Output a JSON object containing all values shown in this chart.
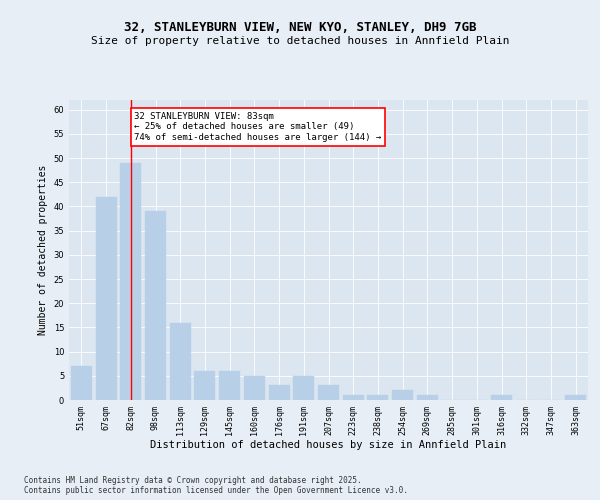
{
  "title": "32, STANLEYBURN VIEW, NEW KYO, STANLEY, DH9 7GB",
  "subtitle": "Size of property relative to detached houses in Annfield Plain",
  "xlabel": "Distribution of detached houses by size in Annfield Plain",
  "ylabel": "Number of detached properties",
  "categories": [
    "51sqm",
    "67sqm",
    "82sqm",
    "98sqm",
    "113sqm",
    "129sqm",
    "145sqm",
    "160sqm",
    "176sqm",
    "191sqm",
    "207sqm",
    "223sqm",
    "238sqm",
    "254sqm",
    "269sqm",
    "285sqm",
    "301sqm",
    "316sqm",
    "332sqm",
    "347sqm",
    "363sqm"
  ],
  "values": [
    7,
    42,
    49,
    39,
    16,
    6,
    6,
    5,
    3,
    5,
    3,
    1,
    1,
    2,
    1,
    0,
    0,
    1,
    0,
    0,
    1
  ],
  "bar_color": "#b8cfe8",
  "bar_edge_color": "#b8cfe8",
  "red_line_index": 2,
  "annotation_text": "32 STANLEYBURN VIEW: 83sqm\n← 25% of detached houses are smaller (49)\n74% of semi-detached houses are larger (144) →",
  "annotation_box_color": "white",
  "annotation_box_edge": "red",
  "ylim": [
    0,
    62
  ],
  "yticks": [
    0,
    5,
    10,
    15,
    20,
    25,
    30,
    35,
    40,
    45,
    50,
    55,
    60
  ],
  "background_color": "#e8eef5",
  "plot_background": "#dce6f0",
  "grid_color": "white",
  "footer": "Contains HM Land Registry data © Crown copyright and database right 2025.\nContains public sector information licensed under the Open Government Licence v3.0.",
  "title_fontsize": 9,
  "subtitle_fontsize": 8,
  "xlabel_fontsize": 7.5,
  "ylabel_fontsize": 7,
  "tick_fontsize": 6,
  "annotation_fontsize": 6.5,
  "footer_fontsize": 5.5
}
